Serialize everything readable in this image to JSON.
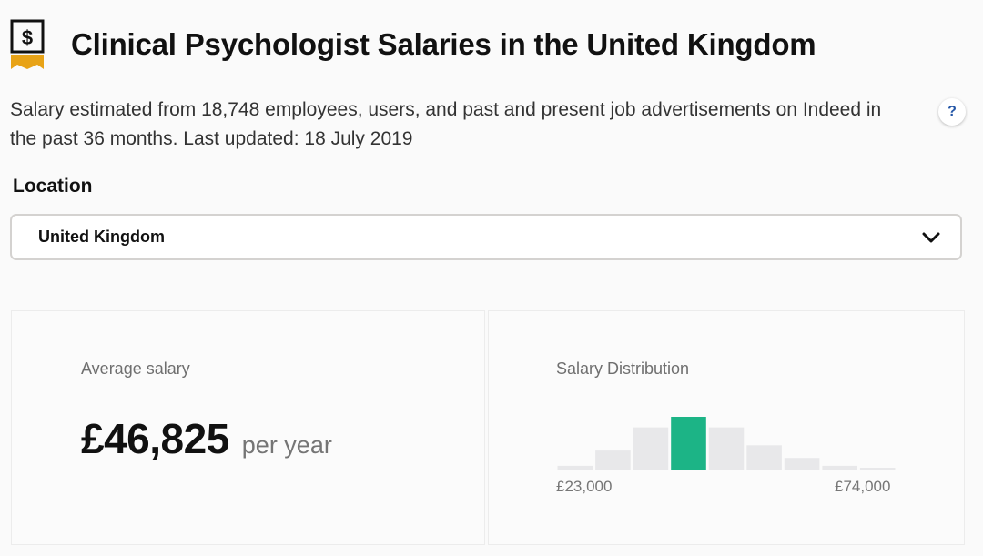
{
  "header": {
    "icon": "salary-dollar-icon",
    "title": "Clinical Psychologist Salaries in the United Kingdom"
  },
  "description": {
    "text": "Salary estimated from 18,748 employees, users, and past and present job advertisements on Indeed in the past 36 months. Last updated: 18 July 2019",
    "help_label": "?"
  },
  "location": {
    "label": "Location",
    "selected": "United Kingdom",
    "icon": "chevron-down-icon"
  },
  "average": {
    "label": "Average salary",
    "amount": "£46,825",
    "period": "per year"
  },
  "distribution": {
    "label": "Salary Distribution",
    "min_label": "£23,000",
    "max_label": "£74,000"
  },
  "chart_data": {
    "type": "bar",
    "title": "Salary Distribution",
    "x_range": [
      "£23,000",
      "£74,000"
    ],
    "values": [
      0.07,
      0.36,
      0.8,
      1.0,
      0.8,
      0.46,
      0.22,
      0.07,
      0.02
    ],
    "highlight_index": 3,
    "colors": {
      "bar": "#e8e8ea",
      "highlight": "#1cb486"
    }
  }
}
